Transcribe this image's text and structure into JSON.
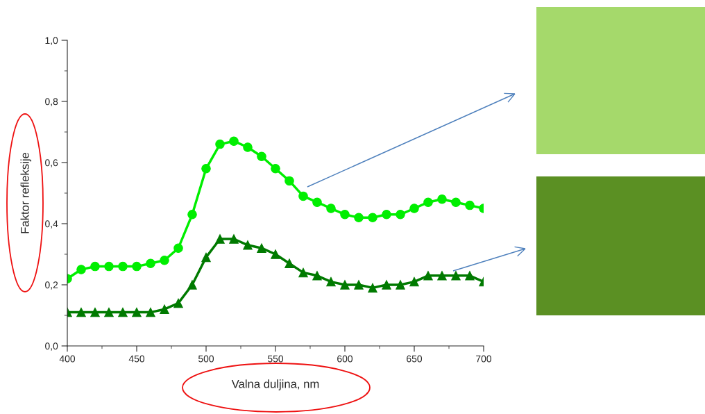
{
  "chart_data": {
    "type": "line",
    "xlabel": "Valna duljina, nm",
    "ylabel": "Faktor refleksije",
    "x": [
      400,
      410,
      420,
      430,
      440,
      450,
      460,
      470,
      480,
      490,
      500,
      510,
      520,
      530,
      540,
      550,
      560,
      570,
      580,
      590,
      600,
      610,
      620,
      630,
      640,
      650,
      660,
      670,
      680,
      690,
      700
    ],
    "series": [
      {
        "color": "#00ee00",
        "marker": "circle",
        "values": [
          0.22,
          0.25,
          0.26,
          0.26,
          0.26,
          0.26,
          0.27,
          0.28,
          0.32,
          0.43,
          0.58,
          0.66,
          0.67,
          0.65,
          0.62,
          0.58,
          0.54,
          0.49,
          0.47,
          0.45,
          0.43,
          0.42,
          0.42,
          0.43,
          0.43,
          0.45,
          0.47,
          0.48,
          0.47,
          0.46,
          0.45
        ]
      },
      {
        "color": "#007a00",
        "marker": "triangle",
        "values": [
          0.11,
          0.11,
          0.11,
          0.11,
          0.11,
          0.11,
          0.11,
          0.12,
          0.14,
          0.2,
          0.29,
          0.35,
          0.35,
          0.33,
          0.32,
          0.3,
          0.27,
          0.24,
          0.23,
          0.21,
          0.2,
          0.2,
          0.19,
          0.2,
          0.2,
          0.21,
          0.23,
          0.23,
          0.23,
          0.23,
          0.21
        ]
      }
    ],
    "line_style": "solid",
    "xlim": [
      400,
      700
    ],
    "xticks": [
      400,
      450,
      500,
      550,
      600,
      650,
      700
    ],
    "ylim": [
      0,
      1.0
    ],
    "yticks": [
      {
        "value": 0,
        "label": "0,0"
      },
      {
        "value": 0.2,
        "label": "0,2"
      },
      {
        "value": 0.4,
        "label": "0,4"
      },
      {
        "value": 0.6,
        "label": "0,6"
      },
      {
        "value": 0.8,
        "label": "0,8"
      },
      {
        "value": 1.0,
        "label": "1,0"
      }
    ]
  }
}
